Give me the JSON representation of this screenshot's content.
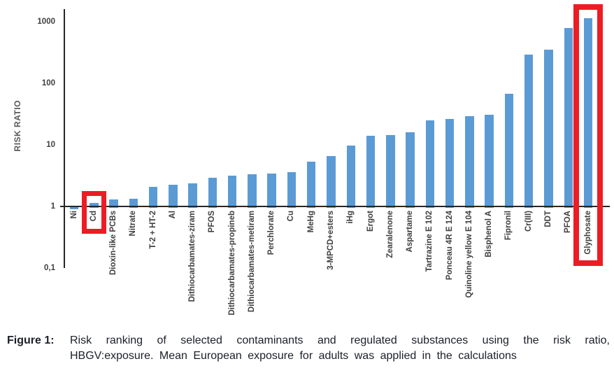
{
  "chart_data": {
    "type": "bar",
    "title": "",
    "xlabel": "",
    "ylabel": "RISK RATIO",
    "yscale": "log",
    "ylim": [
      0.1,
      1500
    ],
    "grid": false,
    "legend": false,
    "ytick_labels": [
      "1000",
      "100",
      "10",
      "1",
      "0,1"
    ],
    "ytick_values": [
      1000,
      100,
      10,
      1,
      0.1
    ],
    "categories": [
      "Ni",
      "Cd",
      "Dioxin-like PCBs",
      "Nitrate",
      "T-2 + HT-2",
      "Al",
      "Dithiocarbamates-ziram",
      "PFOS",
      "Dithiocarbamates-propineb",
      "Dithiocarbamates-metiram",
      "Perchlorate",
      "Cu",
      "MeHg",
      "3-MPCD+esters",
      "iHg",
      "Ergot",
      "Zearalenone",
      "Aspartame",
      "Tartrazine E 102",
      "Ponceau 4R E 124",
      "Quinoline yellow E 104",
      "Bisphenol A",
      "Fipronil",
      "Cr(III)",
      "DDT",
      "PFOA",
      "Glyphosate"
    ],
    "values": [
      0.95,
      1.12,
      1.27,
      1.3,
      2.05,
      2.2,
      2.35,
      2.9,
      3.1,
      3.25,
      3.35,
      3.6,
      5.3,
      6.5,
      9.7,
      13.8,
      14.2,
      16,
      24.5,
      26,
      28.5,
      30.5,
      66,
      290,
      345,
      790,
      1120
    ],
    "highlighted": [
      "Cd",
      "Glyphosate"
    ],
    "colors": {
      "bar": "#5B9BD5",
      "highlight": "#ED1C24",
      "axis": "#262626",
      "tick_text": "#404040",
      "axis_title": "#595959"
    }
  },
  "caption": {
    "prefix": "Figure 1:",
    "line1": "Risk ranking of selected contaminants and regulated substances using the risk ratio,",
    "line2": "HBGV:exposure. Mean European exposure for adults was applied in the calculations"
  }
}
